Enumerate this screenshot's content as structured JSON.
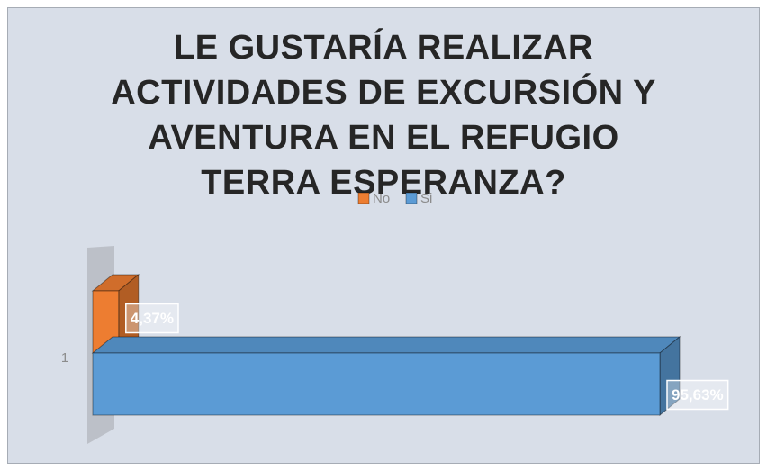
{
  "chart_data": {
    "type": "bar3d_horizontal",
    "title": "LE GUSTARÍA REALIZAR ACTIVIDADES DE EXCURSIÓN Y AVENTURA EN EL REFUGIO TERRA ESPERANZA?",
    "categories": [
      "1"
    ],
    "series": [
      {
        "name": "No",
        "color": "#ed7d31",
        "values": [
          4.37
        ],
        "value_labels": [
          "4,37%"
        ]
      },
      {
        "name": "Si",
        "color": "#5b9bd5",
        "values": [
          95.63
        ],
        "value_labels": [
          "95,63%"
        ]
      }
    ],
    "legend": "top"
  }
}
